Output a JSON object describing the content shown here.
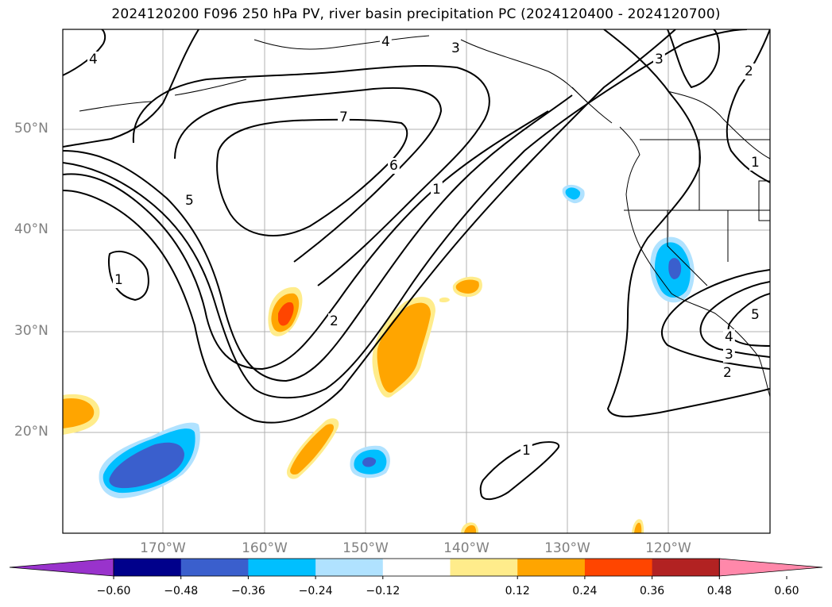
{
  "title": "2024120200 F096 250 hPa PV, river basin precipitation PC (2024120400 - 2024120700)",
  "lat_labels": [
    {
      "text": "50°N"
    },
    {
      "text": "40°N"
    },
    {
      "text": "30°N"
    },
    {
      "text": "20°N"
    }
  ],
  "lon_labels": [
    {
      "text": "170°W"
    },
    {
      "text": "160°W"
    },
    {
      "text": "150°W"
    },
    {
      "text": "140°W"
    },
    {
      "text": "130°W"
    },
    {
      "text": "120°W"
    }
  ],
  "contour_labels": [
    "4",
    "3",
    "7",
    "6",
    "5",
    "1",
    "1",
    "2",
    "3",
    "2",
    "1",
    "2",
    "3",
    "4",
    "5",
    "1",
    "4"
  ],
  "colorbar": {
    "colors": [
      "#9933cc",
      "#00008b",
      "#3a5fcd",
      "#00bfff",
      "#b0e2ff",
      "#ffffff",
      "#ffec8b",
      "#ffa500",
      "#ff4500",
      "#b22222",
      "#ff88aa"
    ],
    "ticks": [
      "−0.60",
      "−0.48",
      "−0.36",
      "−0.24",
      "−0.12",
      "0.12",
      "0.24",
      "0.36",
      "0.48",
      "0.60"
    ]
  },
  "colors": {
    "gridline": "#b0b0b0",
    "axis_label": "#808080",
    "contour": "#000000"
  }
}
